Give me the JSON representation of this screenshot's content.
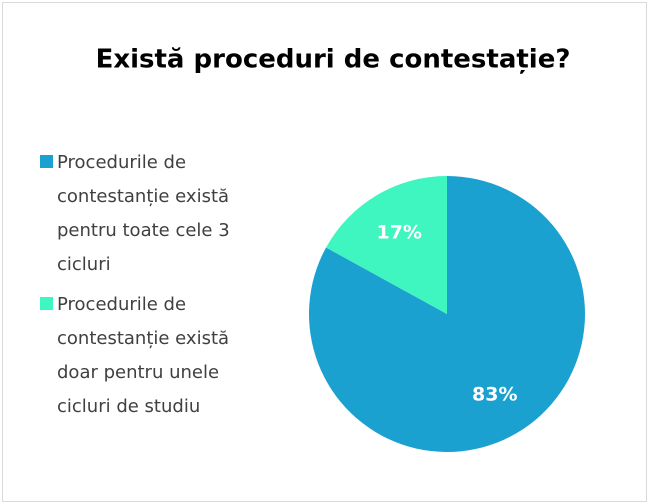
{
  "chart_data": {
    "type": "pie",
    "title": "Există proceduri de contestație?",
    "categories": [
      "Procedurile de contestanție există pentru toate cele 3 cicluri",
      "Procedurile de contestanție există doar pentru unele cicluri de studiu"
    ],
    "values": [
      83,
      17
    ],
    "value_labels": [
      "83%",
      "17%"
    ],
    "colors": [
      "#1ba1cf",
      "#3ff5c0"
    ],
    "legend": "left"
  }
}
